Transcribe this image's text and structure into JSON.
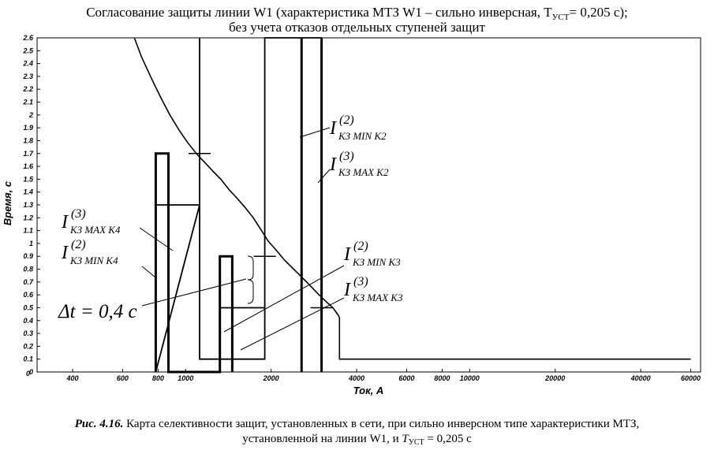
{
  "title": {
    "line1_before": "Согласование защиты линии W1 (характеристика МТЗ W1 – сильно инверсная, T",
    "line1_sub": "УСТ",
    "line1_after": "= 0,205 с);",
    "line2": "без учета отказов отдельных ступеней защит"
  },
  "caption": {
    "number": "Рис. 4.16.",
    "line1_text": " Карта селективности защит, установленных в сети, при сильно инверсном типе характеристики МТЗ,",
    "line2_before": "установленной на линии W1, и ",
    "line2_T": "T",
    "line2_sub": "УСТ",
    "line2_after": " = 0,205 с"
  },
  "chart_data": {
    "type": "line",
    "xlabel": "Ток, А",
    "ylabel": "Время, с",
    "xscale": "log",
    "xlim": [
      300,
      65000
    ],
    "ylim": [
      0,
      2.6
    ],
    "grid": false,
    "x_ticks": [
      400,
      600,
      800,
      1000,
      2000,
      4000,
      6000,
      8000,
      10000,
      20000,
      40000,
      60000
    ],
    "y_ticks": [
      0,
      0.1,
      0.2,
      0.3,
      0.4,
      0.5,
      0.6,
      0.7,
      0.8,
      0.9,
      1,
      1.1,
      1.2,
      1.3,
      1.4,
      1.5,
      1.6,
      1.7,
      1.8,
      1.9,
      2,
      2.1,
      2.2,
      2.3,
      2.4,
      2.5,
      2.6
    ],
    "y_tick_labels": [
      "0",
      "0.1",
      "0.2",
      "0.3",
      "0.4",
      "0.5",
      "0.6",
      "0.7",
      "0.8",
      "0.9",
      "1",
      "1.1",
      "1.2",
      "1.3",
      "1.4",
      "1.5",
      "1.6",
      "1.7",
      "1.8",
      "1.9",
      "2",
      "2.1",
      "2.2",
      "2.3",
      "2.4",
      "2.5",
      "2.6"
    ],
    "series": [
      {
        "kind": "inverse-curve",
        "x": [
          660,
          700,
          760,
          820,
          880,
          950,
          1020,
          1100,
          1180,
          1250,
          1330,
          1420,
          1520,
          1620,
          1730,
          1850,
          1950,
          2080,
          2230,
          2400,
          2560,
          2750,
          2950,
          3150,
          3300,
          3400,
          3450,
          3470,
          3480,
          3480,
          60000
        ],
        "y": [
          2.6,
          2.45,
          2.28,
          2.13,
          2.0,
          1.88,
          1.78,
          1.69,
          1.62,
          1.56,
          1.5,
          1.42,
          1.35,
          1.28,
          1.2,
          1.1,
          1.02,
          0.95,
          0.87,
          0.8,
          0.74,
          0.67,
          0.6,
          0.54,
          0.5,
          0.46,
          0.44,
          0.43,
          0.42,
          0.1,
          0.1
        ]
      },
      {
        "kind": "thick-steps",
        "x": [
          785,
          785,
          870,
          870,
          1320,
          1320,
          1460,
          1460
        ],
        "y": [
          0,
          1.7,
          1.7,
          0,
          0,
          0.9,
          0.9,
          0
        ]
      },
      {
        "kind": "thin-steps",
        "x": [
          1120,
          1120,
          785,
          785,
          1120,
          1120,
          1320,
          1320,
          1900,
          1900,
          1120,
          1120,
          1900,
          1900,
          3010
        ],
        "y": [
          2.6,
          1.3,
          1.3,
          0,
          1.3,
          0.1,
          0.1,
          0.5,
          0.5,
          0.1,
          0.1,
          0.1,
          0.1,
          2.6,
          2.6
        ]
      }
    ],
    "vertical_lines": [
      {
        "x": 2560,
        "label_main": "I",
        "label_sup": "(2)",
        "label_sub": "КЗ MIN K2"
      },
      {
        "x": 3010,
        "label_main": "I",
        "label_sup": "(3)",
        "label_sub": "КЗ MAX K2"
      }
    ],
    "step_labels": [
      {
        "label_main": "I",
        "label_sup": "(3)",
        "label_sub": "КЗ MAX K4"
      },
      {
        "label_main": "I",
        "label_sup": "(2)",
        "label_sub": "КЗ MIN K4"
      },
      {
        "label_main": "I",
        "label_sup": "(2)",
        "label_sub": "КЗ MIN K3"
      },
      {
        "label_main": "I",
        "label_sup": "(3)",
        "label_sub": "КЗ MAX K3"
      }
    ],
    "annotation": "Δt = 0,4 с",
    "markers": [
      {
        "x": 1120,
        "y": 1.7
      },
      {
        "x": 1900,
        "y": 0.9
      },
      {
        "x": 3010,
        "y": 0.5
      }
    ]
  }
}
